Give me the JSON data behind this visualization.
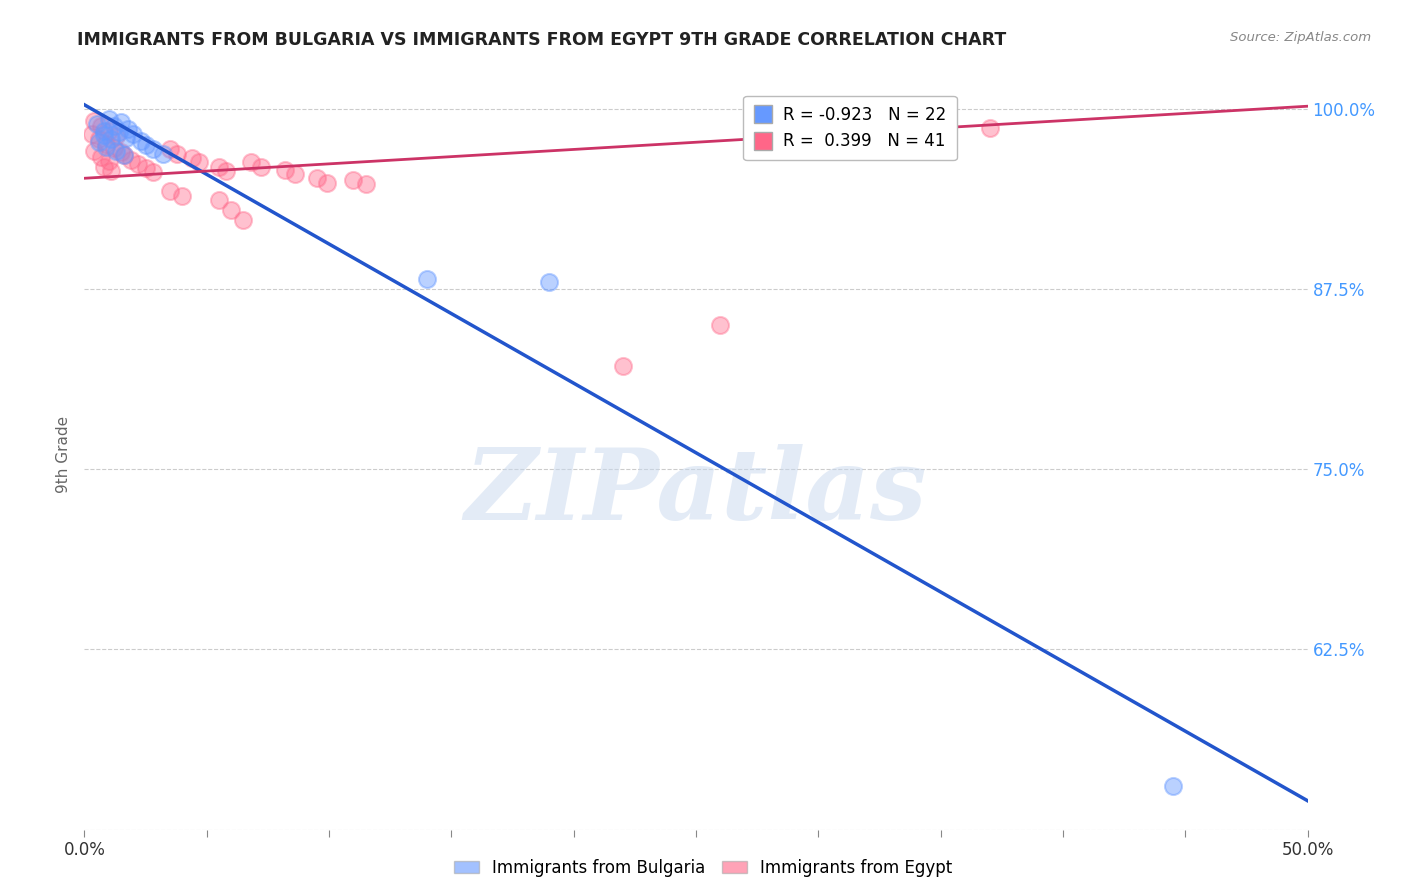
{
  "title": "IMMIGRANTS FROM BULGARIA VS IMMIGRANTS FROM EGYPT 9TH GRADE CORRELATION CHART",
  "source": "Source: ZipAtlas.com",
  "ylabel": "9th Grade",
  "xlim": [
    0.0,
    0.5
  ],
  "ylim": [
    0.5,
    1.02
  ],
  "xticks": [
    0.0,
    0.05,
    0.1,
    0.15,
    0.2,
    0.25,
    0.3,
    0.35,
    0.4,
    0.45,
    0.5
  ],
  "xticklabels_show": {
    "0.0": "0.0%",
    "0.5": "50.0%"
  },
  "yticks": [
    0.5,
    0.625,
    0.75,
    0.875,
    1.0
  ],
  "legend_r_bulgaria": "-0.923",
  "legend_n_bulgaria": "22",
  "legend_r_egypt": "0.399",
  "legend_n_egypt": "41",
  "color_bulgaria": "#6699ff",
  "color_egypt": "#ff6688",
  "line_color_bulgaria": "#2255cc",
  "line_color_egypt": "#cc3366",
  "watermark": "ZIPatlas",
  "bg_color": "#ffffff",
  "grid_color": "#cccccc",
  "title_color": "#222222",
  "axis_label_color": "#666666",
  "tick_color_right": "#4499ff",
  "bulgaria_points": [
    [
      0.005,
      0.99
    ],
    [
      0.008,
      0.985
    ],
    [
      0.01,
      0.993
    ],
    [
      0.012,
      0.988
    ],
    [
      0.015,
      0.991
    ],
    [
      0.018,
      0.986
    ],
    [
      0.008,
      0.982
    ],
    [
      0.011,
      0.979
    ],
    [
      0.014,
      0.984
    ],
    [
      0.017,
      0.98
    ],
    [
      0.02,
      0.983
    ],
    [
      0.023,
      0.978
    ],
    [
      0.006,
      0.977
    ],
    [
      0.009,
      0.974
    ],
    [
      0.013,
      0.971
    ],
    [
      0.016,
      0.968
    ],
    [
      0.025,
      0.975
    ],
    [
      0.028,
      0.972
    ],
    [
      0.032,
      0.969
    ],
    [
      0.14,
      0.882
    ],
    [
      0.19,
      0.88
    ],
    [
      0.445,
      0.53
    ]
  ],
  "egypt_points": [
    [
      0.004,
      0.992
    ],
    [
      0.007,
      0.988
    ],
    [
      0.01,
      0.985
    ],
    [
      0.013,
      0.981
    ],
    [
      0.003,
      0.983
    ],
    [
      0.006,
      0.979
    ],
    [
      0.009,
      0.976
    ],
    [
      0.012,
      0.973
    ],
    [
      0.015,
      0.97
    ],
    [
      0.004,
      0.971
    ],
    [
      0.007,
      0.967
    ],
    [
      0.01,
      0.964
    ],
    [
      0.016,
      0.968
    ],
    [
      0.019,
      0.965
    ],
    [
      0.022,
      0.962
    ],
    [
      0.025,
      0.959
    ],
    [
      0.028,
      0.956
    ],
    [
      0.008,
      0.96
    ],
    [
      0.011,
      0.957
    ],
    [
      0.035,
      0.972
    ],
    [
      0.038,
      0.969
    ],
    [
      0.044,
      0.966
    ],
    [
      0.047,
      0.963
    ],
    [
      0.055,
      0.96
    ],
    [
      0.058,
      0.957
    ],
    [
      0.068,
      0.963
    ],
    [
      0.072,
      0.96
    ],
    [
      0.082,
      0.958
    ],
    [
      0.086,
      0.955
    ],
    [
      0.095,
      0.952
    ],
    [
      0.099,
      0.949
    ],
    [
      0.11,
      0.951
    ],
    [
      0.115,
      0.948
    ],
    [
      0.035,
      0.943
    ],
    [
      0.04,
      0.94
    ],
    [
      0.055,
      0.937
    ],
    [
      0.06,
      0.93
    ],
    [
      0.065,
      0.923
    ],
    [
      0.37,
      0.987
    ],
    [
      0.22,
      0.822
    ],
    [
      0.26,
      0.85
    ]
  ],
  "bulgaria_line_x": [
    0.0,
    0.5
  ],
  "bulgaria_line_y": [
    1.003,
    0.52
  ],
  "egypt_line_x": [
    0.0,
    0.5
  ],
  "egypt_line_y": [
    0.952,
    1.002
  ]
}
